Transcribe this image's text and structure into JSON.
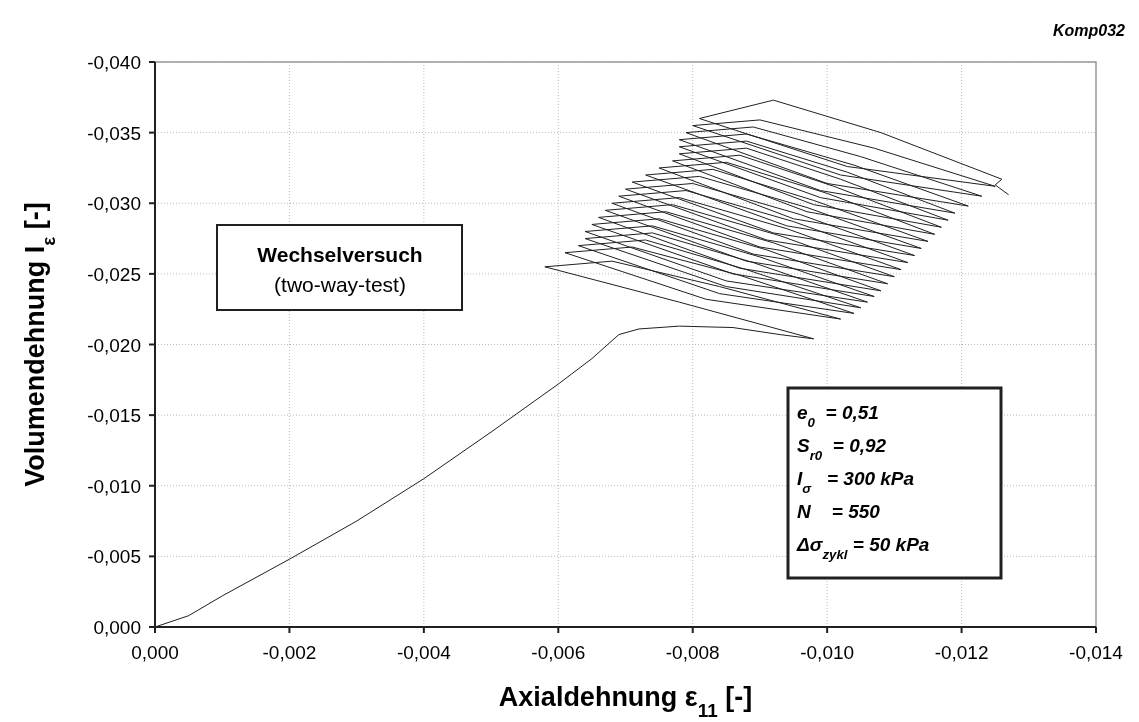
{
  "chart_data": {
    "type": "line",
    "title": "Komp032",
    "xlabel": "Axialdehnung  ε$_{11}$ [-]",
    "ylabel": "Volumendehnung  I$_{ε}$ [-]",
    "annotations": [
      "Wechselversuch",
      "(two-way-test)",
      "e$_{0}$  = 0,51",
      "S$_{r0}$  = 0,92",
      "I$_{σ}$   = 300 kPa",
      "N    = 550",
      "Δσ$_{zykl}$ = 50 kPa"
    ],
    "xlim": [
      0,
      -0.014
    ],
    "ylim": [
      0,
      -0.04
    ],
    "xticks": [
      {
        "value": 0,
        "label": "0,000"
      },
      {
        "value": -0.002,
        "label": "-0,002"
      },
      {
        "value": -0.004,
        "label": "-0,004"
      },
      {
        "value": -0.006,
        "label": "-0,006"
      },
      {
        "value": -0.008,
        "label": "-0,008"
      },
      {
        "value": -0.01,
        "label": "-0,010"
      },
      {
        "value": -0.012,
        "label": "-0,012"
      },
      {
        "value": -0.014,
        "label": "-0,014"
      }
    ],
    "yticks": [
      {
        "value": 0,
        "label": "0,000"
      },
      {
        "value": -0.005,
        "label": "-0,005"
      },
      {
        "value": -0.01,
        "label": "-0,010"
      },
      {
        "value": -0.015,
        "label": "-0,015"
      },
      {
        "value": -0.02,
        "label": "-0,020"
      },
      {
        "value": -0.025,
        "label": "-0,025"
      },
      {
        "value": -0.03,
        "label": "-0,030"
      },
      {
        "value": -0.035,
        "label": "-0,035"
      },
      {
        "value": -0.04,
        "label": "-0,040"
      }
    ],
    "grid": true,
    "marker": "none",
    "line_style": "solid",
    "series": [
      {
        "color": "#231f20",
        "x": [
          0,
          -0.0005,
          -0.001,
          -0.002,
          -0.003,
          -0.004,
          -0.005,
          -0.006,
          -0.0065,
          -0.0069,
          -0.0072,
          -0.0078,
          -0.0086,
          -0.0093,
          -0.0098,
          -0.0078,
          -0.0058,
          -0.0068,
          -0.0084,
          -0.0102,
          -0.0082,
          -0.0061,
          -0.0071,
          -0.0087,
          -0.0104,
          -0.0084,
          -0.0063,
          -0.0073,
          -0.0088,
          -0.0105,
          -0.0085,
          -0.0064,
          -0.0074,
          -0.0089,
          -0.0106,
          -0.0085,
          -0.0064,
          -0.0074,
          -0.009,
          -0.0107,
          -0.0086,
          -0.0065,
          -0.0075,
          -0.0091,
          -0.0108,
          -0.0087,
          -0.0066,
          -0.0076,
          -0.0092,
          -0.0109,
          -0.0088,
          -0.0067,
          -0.0077,
          -0.0093,
          -0.011,
          -0.0089,
          -0.0068,
          -0.0078,
          -0.0094,
          -0.0111,
          -0.009,
          -0.0069,
          -0.0079,
          -0.0095,
          -0.0112,
          -0.0091,
          -0.007,
          -0.008,
          -0.0096,
          -0.0113,
          -0.0092,
          -0.0071,
          -0.0081,
          -0.0097,
          -0.0114,
          -0.0094,
          -0.0073,
          -0.0083,
          -0.0098,
          -0.0115,
          -0.0095,
          -0.0075,
          -0.0085,
          -0.01,
          -0.0116,
          -0.0097,
          -0.0077,
          -0.0087,
          -0.0101,
          -0.0117,
          -0.0098,
          -0.0078,
          -0.0088,
          -0.0102,
          -0.0118,
          -0.0099,
          -0.0078,
          -0.0088,
          -0.0103,
          -0.0119,
          -0.0099,
          -0.0078,
          -0.0088,
          -0.0104,
          -0.0121,
          -0.01,
          -0.0079,
          -0.0089,
          -0.0105,
          -0.0123,
          -0.0102,
          -0.008,
          -0.009,
          -0.0107,
          -0.0125,
          -0.0103,
          -0.0081,
          -0.0092,
          -0.0108,
          -0.0126,
          -0.0125,
          -0.0127
        ],
        "values": [
          0,
          -0.0008,
          -0.0022,
          -0.0048,
          -0.0075,
          -0.0105,
          -0.0138,
          -0.0172,
          -0.019,
          -0.0207,
          -0.0211,
          -0.0213,
          -0.0212,
          -0.0207,
          -0.0204,
          -0.023,
          -0.0255,
          -0.0259,
          -0.0241,
          -0.0218,
          -0.0232,
          -0.0265,
          -0.0269,
          -0.0249,
          -0.0222,
          -0.0236,
          -0.027,
          -0.0274,
          -0.0253,
          -0.0226,
          -0.0241,
          -0.0275,
          -0.0279,
          -0.0258,
          -0.023,
          -0.0245,
          -0.028,
          -0.0284,
          -0.0262,
          -0.0234,
          -0.025,
          -0.0285,
          -0.0289,
          -0.0267,
          -0.0238,
          -0.0254,
          -0.029,
          -0.0294,
          -0.0272,
          -0.0243,
          -0.0259,
          -0.0295,
          -0.0299,
          -0.0277,
          -0.0248,
          -0.0264,
          -0.03,
          -0.0304,
          -0.0282,
          -0.0253,
          -0.0269,
          -0.0305,
          -0.0309,
          -0.0287,
          -0.0258,
          -0.0274,
          -0.031,
          -0.0314,
          -0.0292,
          -0.0263,
          -0.0279,
          -0.0315,
          -0.0319,
          -0.0297,
          -0.0268,
          -0.0284,
          -0.032,
          -0.0324,
          -0.0302,
          -0.0273,
          -0.0289,
          -0.0325,
          -0.0329,
          -0.0307,
          -0.0278,
          -0.0294,
          -0.033,
          -0.0334,
          -0.0312,
          -0.0283,
          -0.0299,
          -0.0335,
          -0.0339,
          -0.0317,
          -0.0288,
          -0.0304,
          -0.034,
          -0.0344,
          -0.0322,
          -0.0293,
          -0.0309,
          -0.0345,
          -0.0349,
          -0.0327,
          -0.0298,
          -0.0314,
          -0.035,
          -0.0354,
          -0.0333,
          -0.0305,
          -0.032,
          -0.0355,
          -0.0359,
          -0.0339,
          -0.0312,
          -0.0326,
          -0.036,
          -0.0373,
          -0.035,
          -0.0317,
          -0.0313,
          -0.0306
        ]
      }
    ]
  }
}
